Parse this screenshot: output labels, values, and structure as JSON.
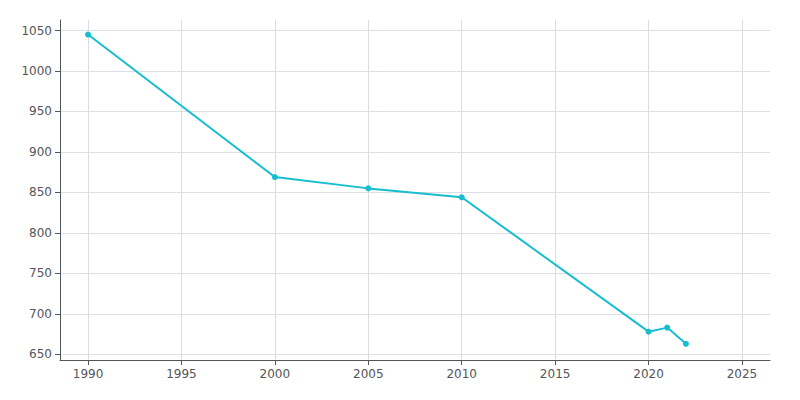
{
  "chart_data": {
    "type": "line",
    "x": [
      1990,
      2000,
      2005,
      2010,
      2020,
      2021,
      2022
    ],
    "values": [
      1045,
      869,
      855,
      844,
      678,
      683,
      663
    ],
    "color": "#17becf",
    "marker": "circle",
    "xlim": [
      1988.5,
      2026.5
    ],
    "xticks": [
      1990,
      1995,
      2000,
      2005,
      2010,
      2015,
      2020,
      2025
    ],
    "ylim": [
      643,
      1063
    ],
    "yticks": [
      650,
      700,
      750,
      800,
      850,
      900,
      950,
      1000,
      1050
    ],
    "grid": true
  }
}
